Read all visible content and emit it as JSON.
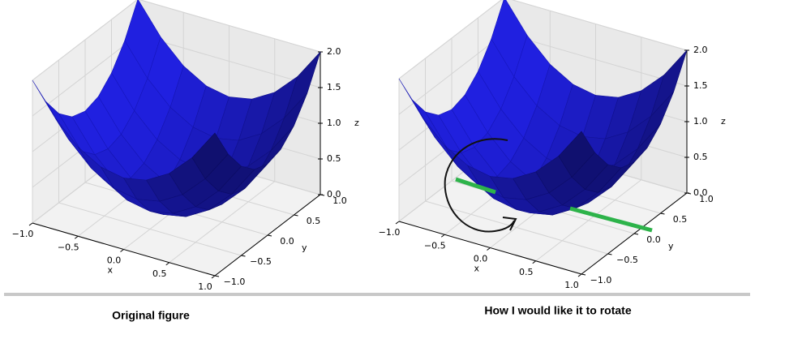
{
  "chart_data": [
    {
      "type": "surface",
      "caption": "Original figure",
      "xlabel": "x",
      "ylabel": "y",
      "zlabel": "z",
      "color": "#2020e0",
      "xlim": [
        -1,
        1
      ],
      "ylim": [
        -1,
        1
      ],
      "zlim": [
        0,
        2
      ],
      "xticks": [
        {
          "value": -1,
          "label": "−1.0"
        },
        {
          "value": -0.5,
          "label": "−0.5"
        },
        {
          "value": 0,
          "label": "0.0"
        },
        0.5,
        {
          "value": 1,
          "label": "1.0"
        }
      ],
      "yticks": [
        {
          "value": -1,
          "label": "−1.0"
        },
        {
          "value": -0.5,
          "label": "−0.5"
        },
        {
          "value": 0,
          "label": "0.0"
        },
        0.5,
        {
          "value": 1,
          "label": "1.0"
        }
      ],
      "zticks": [
        {
          "value": 0,
          "label": "0.0"
        },
        0.5,
        {
          "value": 1,
          "label": "1.0"
        },
        1.5,
        {
          "value": 2,
          "label": "2.0"
        }
      ],
      "x": [
        -1,
        -0.75,
        -0.5,
        -0.25,
        0,
        0.25,
        0.5,
        0.75,
        1
      ],
      "y": [
        -1,
        -0.75,
        -0.5,
        -0.25,
        0,
        0.25,
        0.5,
        0.75,
        1
      ],
      "z": [
        [
          2,
          1.5625,
          1.25,
          1.0625,
          1,
          1.0625,
          1.25,
          1.5625,
          2
        ],
        [
          1.5625,
          1.125,
          0.8125,
          0.625,
          0.5625,
          0.625,
          0.8125,
          1.125,
          1.5625
        ],
        [
          1.25,
          0.8125,
          0.5,
          0.3125,
          0.25,
          0.3125,
          0.5,
          0.8125,
          1.25
        ],
        [
          1.0625,
          0.625,
          0.3125,
          0.125,
          0.0625,
          0.125,
          0.3125,
          0.625,
          1.0625
        ],
        [
          1,
          0.5625,
          0.25,
          0.0625,
          0,
          0.0625,
          0.25,
          0.5625,
          1
        ],
        [
          1.0625,
          0.625,
          0.3125,
          0.125,
          0.0625,
          0.125,
          0.3125,
          0.625,
          1.0625
        ],
        [
          1.25,
          0.8125,
          0.5,
          0.3125,
          0.25,
          0.3125,
          0.5,
          0.8125,
          1.25
        ],
        [
          1.5625,
          1.125,
          0.8125,
          0.625,
          0.5625,
          0.625,
          0.8125,
          1.125,
          1.5625
        ],
        [
          2,
          1.5625,
          1.25,
          1.0625,
          1,
          1.0625,
          1.25,
          1.5625,
          2
        ]
      ]
    },
    {
      "type": "surface",
      "caption": "How I would like it to rotate",
      "xlabel": "x",
      "ylabel": "y",
      "zlabel": "z",
      "color": "#2020e0",
      "xlim": [
        -1,
        1
      ],
      "ylim": [
        -1,
        1
      ],
      "zlim": [
        0,
        2
      ],
      "xticks": [
        {
          "value": -1,
          "label": "−1.0"
        },
        {
          "value": -0.5,
          "label": "−0.5"
        },
        {
          "value": 0,
          "label": "0.0"
        },
        0.5,
        {
          "value": 1,
          "label": "1.0"
        }
      ],
      "yticks": [
        {
          "value": -1,
          "label": "−1.0"
        },
        {
          "value": -0.5,
          "label": "−0.5"
        },
        {
          "value": 0,
          "label": "0.0"
        },
        0.5,
        {
          "value": 1,
          "label": "1.0"
        }
      ],
      "zticks": [
        {
          "value": 0,
          "label": "0.0"
        },
        0.5,
        {
          "value": 1,
          "label": "1.0"
        },
        1.5,
        {
          "value": 2,
          "label": "2.0"
        }
      ],
      "x": [
        -1,
        -0.75,
        -0.5,
        -0.25,
        0,
        0.25,
        0.5,
        0.75,
        1
      ],
      "y": [
        -1,
        -0.75,
        -0.5,
        -0.25,
        0,
        0.25,
        0.5,
        0.75,
        1
      ],
      "z": [
        [
          2,
          1.5625,
          1.25,
          1.0625,
          1,
          1.0625,
          1.25,
          1.5625,
          2
        ],
        [
          1.5625,
          1.125,
          0.8125,
          0.625,
          0.5625,
          0.625,
          0.8125,
          1.125,
          1.5625
        ],
        [
          1.25,
          0.8125,
          0.5,
          0.3125,
          0.25,
          0.3125,
          0.5,
          0.8125,
          1.25
        ],
        [
          1.0625,
          0.625,
          0.3125,
          0.125,
          0.0625,
          0.125,
          0.3125,
          0.625,
          1.0625
        ],
        [
          1,
          0.5625,
          0.25,
          0.0625,
          0,
          0.0625,
          0.25,
          0.5625,
          1
        ],
        [
          1.0625,
          0.625,
          0.3125,
          0.125,
          0.0625,
          0.125,
          0.3125,
          0.625,
          1.0625
        ],
        [
          1.25,
          0.8125,
          0.5,
          0.3125,
          0.25,
          0.3125,
          0.5,
          0.8125,
          1.25
        ],
        [
          1.5625,
          1.125,
          0.8125,
          0.625,
          0.5625,
          0.625,
          0.8125,
          1.125,
          1.5625
        ],
        [
          2,
          1.5625,
          1.25,
          1.0625,
          1,
          1.0625,
          1.25,
          1.5625,
          2
        ]
      ]
    }
  ]
}
